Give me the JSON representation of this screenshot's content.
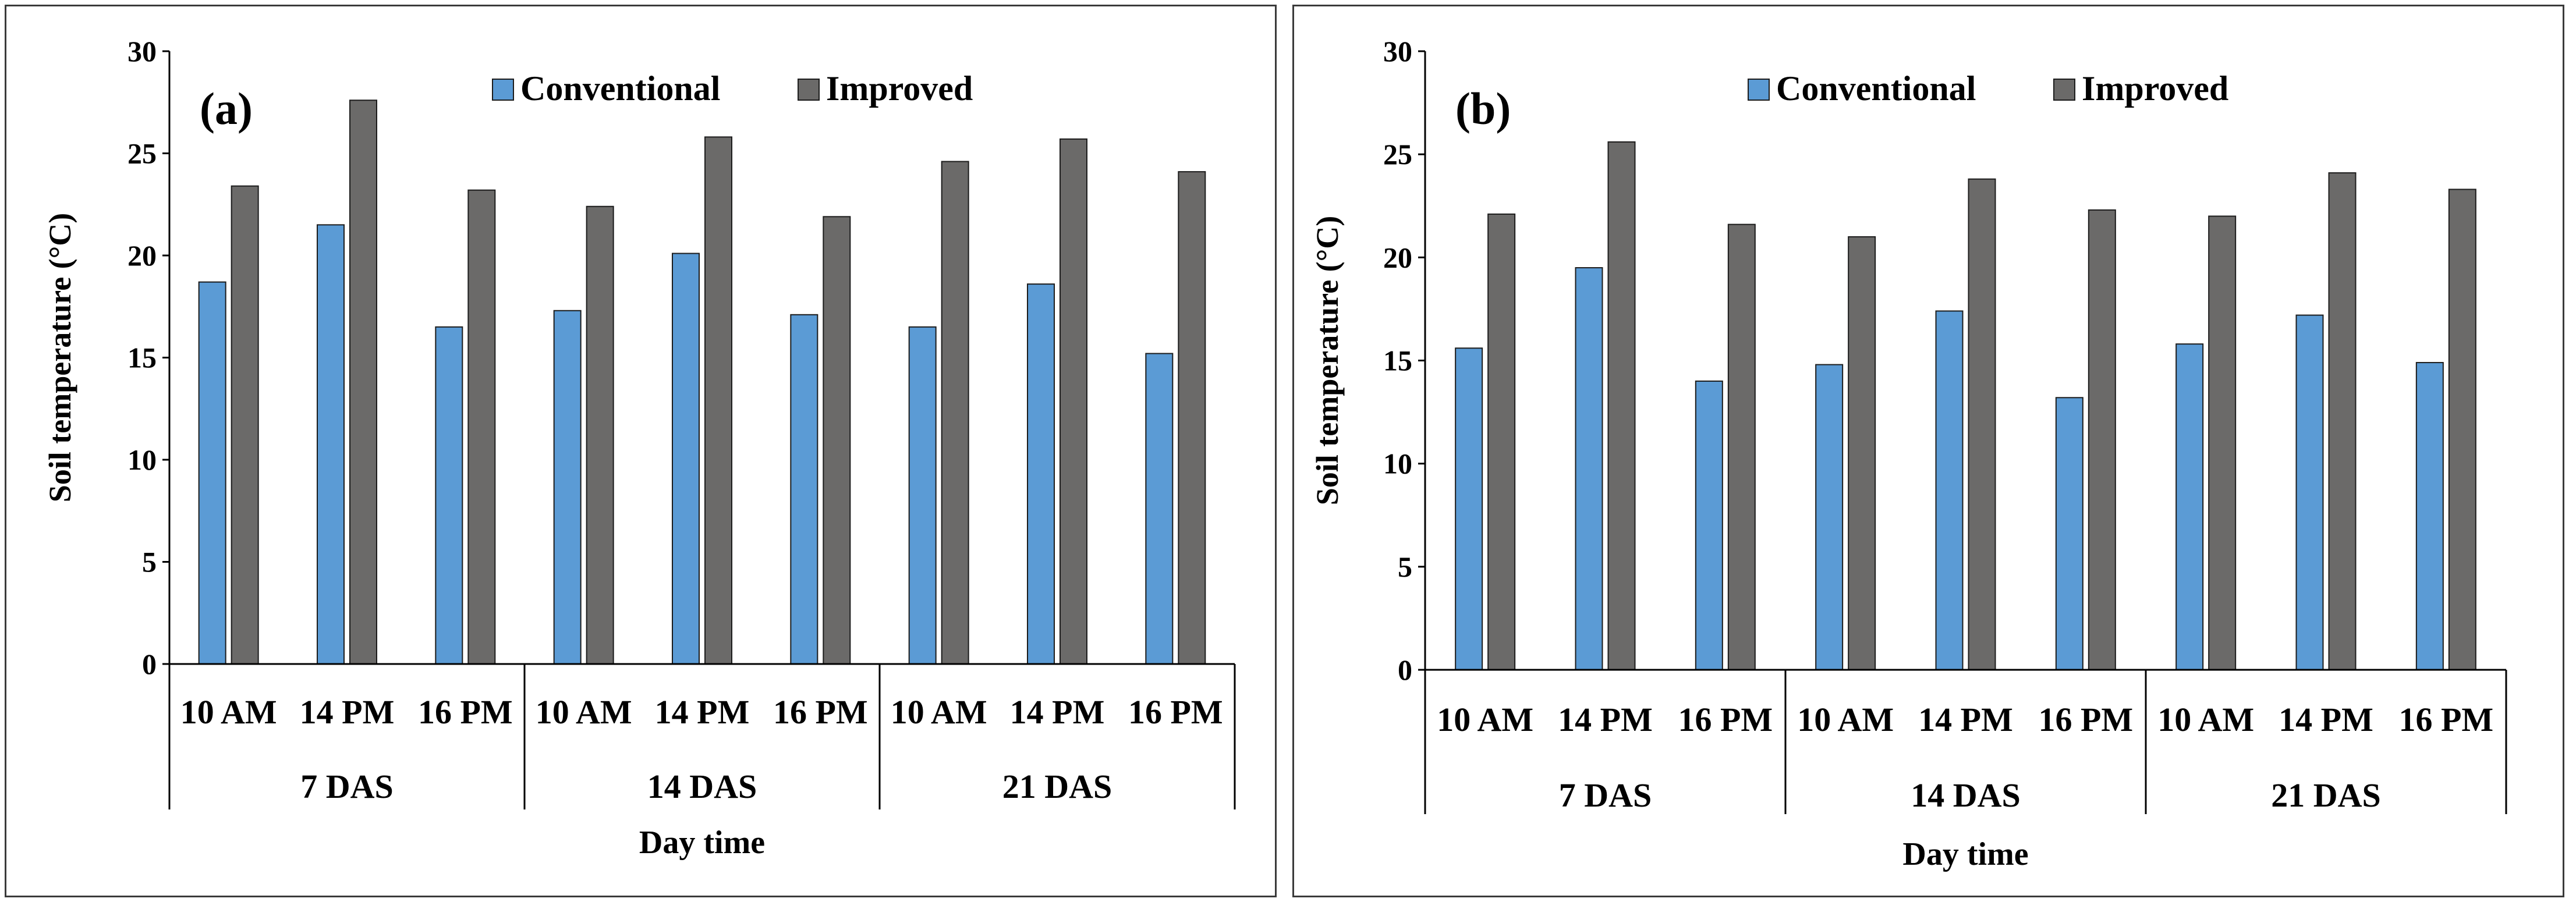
{
  "colors": {
    "conventional": "#5b9bd5",
    "improved": "#6b6a69",
    "axis": "#000000",
    "border": "#3a3a3a"
  },
  "chart_data": [
    {
      "type": "bar",
      "panel_label": "(a)",
      "groups": [
        "7 DAS",
        "14 DAS",
        "21 DAS"
      ],
      "categories": [
        "10 AM",
        "14 PM",
        "16 PM",
        "10 AM",
        "14 PM",
        "16 PM",
        "10 AM",
        "14 PM",
        "16 PM"
      ],
      "series": [
        {
          "name": "Conventional",
          "values": [
            18.7,
            21.5,
            16.5,
            17.3,
            20.1,
            17.1,
            16.5,
            18.6,
            15.2
          ]
        },
        {
          "name": "Improved",
          "values": [
            23.4,
            27.6,
            23.2,
            22.4,
            25.8,
            21.9,
            24.6,
            25.7,
            24.1
          ]
        }
      ],
      "xlabel": "Day time",
      "ylabel": "Soil temperature (°C)",
      "ylim": [
        0,
        30
      ],
      "yticks": [
        "0",
        "5",
        "10",
        "15",
        "20",
        "25",
        "30"
      ],
      "legend": "top-center"
    },
    {
      "type": "bar",
      "panel_label": "(b)",
      "groups": [
        "7 DAS",
        "14 DAS",
        "21 DAS"
      ],
      "categories": [
        "10 AM",
        "14 PM",
        "16 PM",
        "10 AM",
        "14 PM",
        "16 PM",
        "10 AM",
        "14 PM",
        "16 PM"
      ],
      "series": [
        {
          "name": "Conventional",
          "values": [
            15.6,
            19.5,
            14.0,
            14.8,
            17.4,
            13.2,
            15.8,
            17.2,
            14.9
          ]
        },
        {
          "name": "Improved",
          "values": [
            22.1,
            25.6,
            21.6,
            21.0,
            23.8,
            22.3,
            22.0,
            24.1,
            23.3
          ]
        }
      ],
      "xlabel": "Day time",
      "ylabel": "Soil temperature (°C)",
      "ylim": [
        0,
        30
      ],
      "yticks": [
        "0",
        "5",
        "10",
        "15",
        "20",
        "25",
        "30"
      ],
      "legend": "top-center"
    }
  ]
}
